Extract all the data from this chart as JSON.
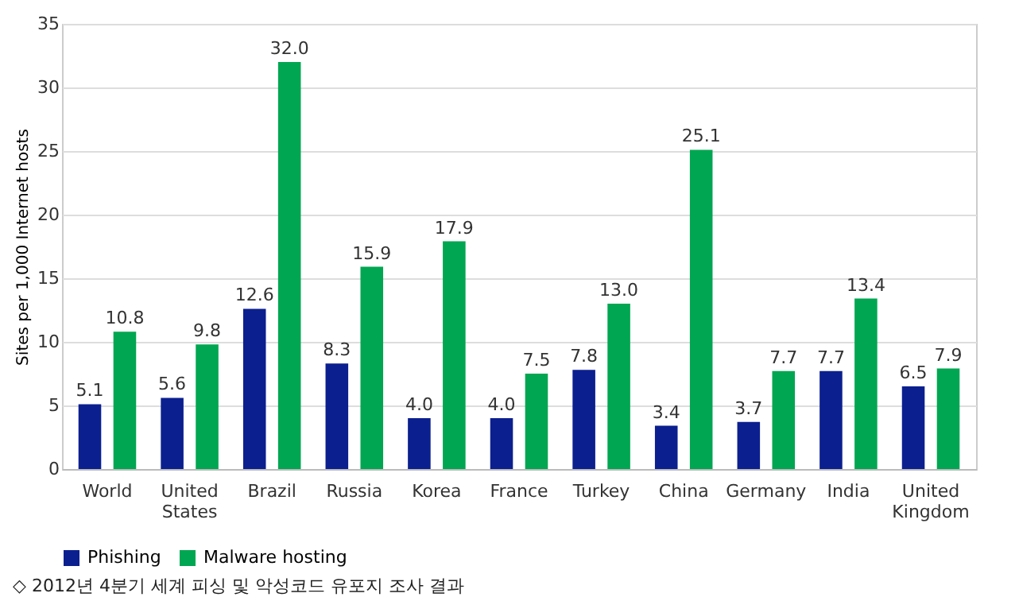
{
  "chart_data": {
    "type": "bar",
    "ylabel": "Sites per 1,000 Internet hosts",
    "categories": [
      "World",
      "United States",
      "Brazil",
      "Russia",
      "Korea",
      "France",
      "Turkey",
      "China",
      "Germany",
      "India",
      "United Kingdom"
    ],
    "series": [
      {
        "name": "Phishing",
        "color": "#0b1f8f",
        "values": [
          5.1,
          5.6,
          12.6,
          8.3,
          4.0,
          4.0,
          7.8,
          3.4,
          3.7,
          7.7,
          6.5
        ],
        "value_labels": [
          "5.1",
          "5.6",
          "12.6",
          "8.3",
          "4.0",
          "4.0",
          "7.8",
          "3.4",
          "3.7",
          "7.7",
          "6.5"
        ]
      },
      {
        "name": "Malware hosting",
        "color": "#00a651",
        "values": [
          10.8,
          9.8,
          32.0,
          15.9,
          17.9,
          7.5,
          13.0,
          25.1,
          7.7,
          13.4,
          7.9
        ],
        "value_labels": [
          "10.8",
          "9.8",
          "32.0",
          "15.9",
          "17.9",
          "7.5",
          "13.0",
          "25.1",
          "7.7",
          "13.4",
          "7.9"
        ]
      }
    ],
    "ylim": [
      0,
      35
    ],
    "yticks": [
      0,
      5,
      10,
      15,
      20,
      25,
      30,
      35
    ],
    "grid": "y",
    "legend": "bottom",
    "annotations": [
      "◇ 2012년 4분기 세계 피싱 및 악성코드 유포지 조사 결과"
    ]
  }
}
